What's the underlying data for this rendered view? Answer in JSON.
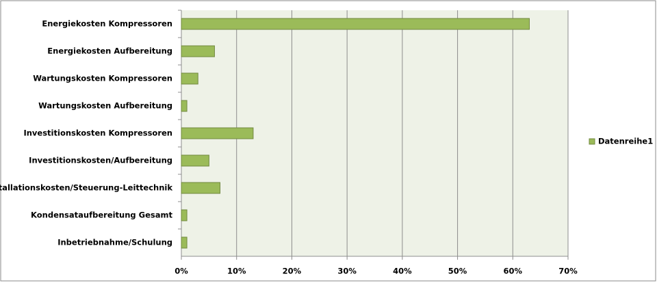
{
  "chart_data": {
    "type": "bar",
    "orientation": "horizontal",
    "categories": [
      "Energiekosten Kompressoren",
      "Energiekosten Aufbereitung",
      "Wartungskosten Kompressoren",
      "Wartungskosten Aufbereitung",
      "Investitionskosten Kompressoren",
      "Investitionskosten/Aufbereitung",
      "Installationskosten/Steuerung-Leittechnik",
      "Kondensataufbereitung Gesamt",
      "Inbetriebnahme/Schulung"
    ],
    "series": [
      {
        "name": "Datenreihe1",
        "color": "#9bbb59",
        "values": [
          63,
          6,
          3,
          1,
          13,
          5,
          7,
          1,
          1
        ]
      }
    ],
    "xlim": [
      0,
      70
    ],
    "xticks": [
      {
        "value": 0,
        "label": "0%"
      },
      {
        "value": 10,
        "label": "10%"
      },
      {
        "value": 20,
        "label": "20%"
      },
      {
        "value": 30,
        "label": "30%"
      },
      {
        "value": 40,
        "label": "40%"
      },
      {
        "value": 50,
        "label": "50%"
      },
      {
        "value": 60,
        "label": "60%"
      },
      {
        "value": 70,
        "label": "70%"
      }
    ],
    "grid": true,
    "legend": "right"
  }
}
